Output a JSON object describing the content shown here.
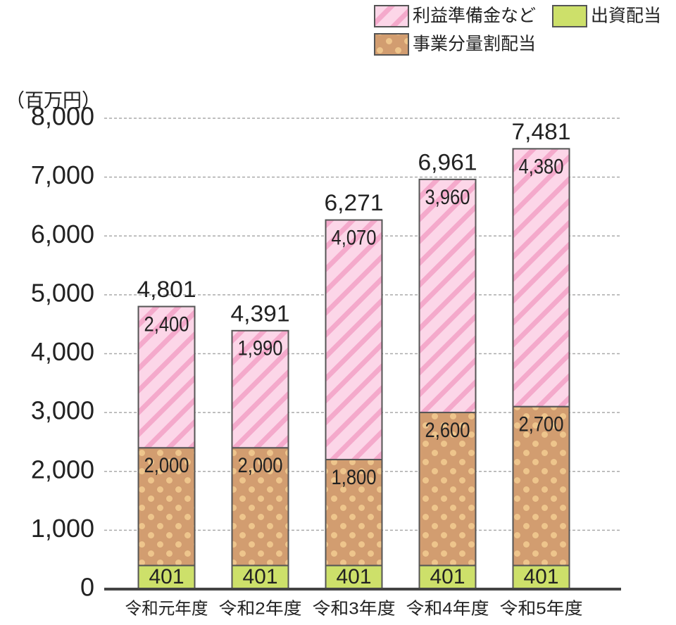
{
  "chart_data": {
    "type": "stacked-bar",
    "unit_label": "（百万円）",
    "categories": [
      "令和元年度",
      "令和2年度",
      "令和3年度",
      "令和4年度",
      "令和5年度"
    ],
    "series": [
      {
        "name": "出資配当",
        "color": "#cde06a",
        "pattern": "solid",
        "values": [
          401,
          401,
          401,
          401,
          401
        ]
      },
      {
        "name": "事業分量割配当",
        "color": "#d29d70",
        "pattern": "dots",
        "pattern_color": "#eec58c",
        "values": [
          2000,
          2000,
          1800,
          2600,
          2700
        ],
        "value_labels": [
          "2,000",
          "2,000",
          "1,800",
          "2,600",
          "2,700"
        ]
      },
      {
        "name": "利益準備金など",
        "color": "#fcd6e8",
        "pattern": "hatch",
        "pattern_color": "#f4a9cb",
        "values": [
          2400,
          1990,
          4070,
          3960,
          4380
        ],
        "value_labels": [
          "2,400",
          "1,990",
          "4,070",
          "3,960",
          "4,380"
        ]
      }
    ],
    "totals": {
      "values": [
        4801,
        4391,
        6271,
        6961,
        7481
      ],
      "value_labels": [
        "4,801",
        "4,391",
        "6,271",
        "6,961",
        "7,481"
      ]
    },
    "ylim": [
      0,
      8000
    ],
    "yticks": [
      0,
      {
        "value": 1000,
        "label": "1,000"
      },
      {
        "value": 2000,
        "label": "2,000"
      },
      {
        "value": 3000,
        "label": "3,000"
      },
      {
        "value": 4000,
        "label": "4,000"
      },
      {
        "value": 5000,
        "label": "5,000"
      },
      {
        "value": 6000,
        "label": "6,000"
      },
      {
        "value": 7000,
        "label": "7,000"
      },
      {
        "value": 8000,
        "label": "8,000"
      }
    ],
    "grid": true
  }
}
